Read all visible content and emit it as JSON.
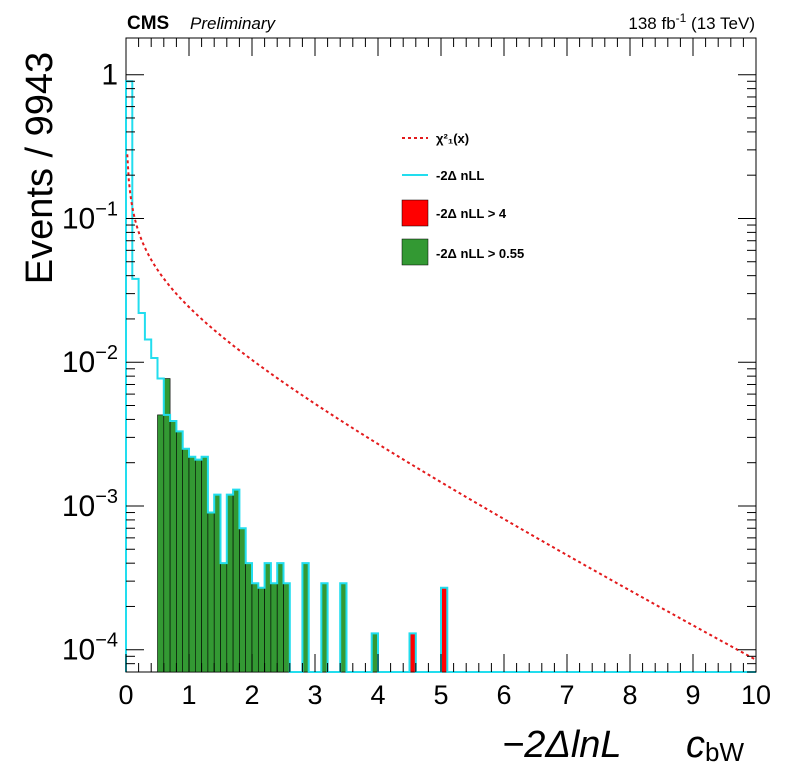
{
  "header": {
    "experiment": "CMS",
    "status": "Preliminary",
    "lumi_value": "138 fb",
    "lumi_exp": "-1",
    "energy": " (13 TeV)"
  },
  "chart_data": {
    "type": "bar",
    "title": "",
    "xlabel_main": "−2ΔlnL",
    "xlabel_param": "c",
    "xlabel_param_sub": "bW",
    "ylabel": "Events / 9943",
    "xlim": [
      0,
      10
    ],
    "ylim": [
      7e-05,
      1.8
    ],
    "yscale": "log",
    "x_ticks": [
      "0",
      "1",
      "2",
      "3",
      "4",
      "5",
      "6",
      "7",
      "8",
      "9",
      "10"
    ],
    "y_ticks": [
      {
        "value": 1,
        "base": "1",
        "exp": ""
      },
      {
        "value": 0.1,
        "base": "10",
        "exp": "−1"
      },
      {
        "value": 0.01,
        "base": "10",
        "exp": "−2"
      },
      {
        "value": 0.001,
        "base": "10",
        "exp": "−3"
      },
      {
        "value": 0.0001,
        "base": "10",
        "exp": "−4"
      }
    ],
    "bin_width": 0.1,
    "legend_position": "top-right",
    "legend": [
      {
        "label": "χ²₁(x)",
        "style": "dashed-line",
        "color": "#e31a1c"
      },
      {
        "label": "-2Δ nLL",
        "style": "line",
        "color": "#22ddee"
      },
      {
        "label": "-2Δ nLL > 4",
        "style": "box",
        "color": "#ff0000"
      },
      {
        "label": "-2Δ nLL > 0.55",
        "style": "box",
        "color": "#339933"
      }
    ],
    "series": [
      {
        "name": "-2Δ nLL",
        "color": "#22ddee",
        "bins_low_edge": [
          0.0,
          0.1,
          0.2,
          0.3,
          0.4,
          0.5,
          0.6,
          0.7,
          0.8,
          0.9,
          1.0,
          1.1,
          1.2,
          1.3,
          1.4,
          1.5,
          1.6,
          1.7,
          1.8,
          1.9,
          2.0,
          2.1,
          2.2,
          2.3,
          2.4,
          2.5,
          2.6,
          2.8,
          3.0,
          3.1,
          3.2,
          3.4,
          3.5,
          3.6,
          3.9,
          4.0,
          4.5,
          4.6,
          5.0,
          5.1
        ],
        "values": [
          0.9,
          0.038,
          0.022,
          0.0144,
          0.0107,
          0.0077,
          0.0043,
          0.0039,
          0.0033,
          0.0025,
          0.0022,
          0.0021,
          0.0022,
          0.0009,
          0.0012,
          0.0004,
          0.0012,
          0.0013,
          0.0007,
          0.0004,
          0.00029,
          0.00027,
          0.0004,
          0.00029,
          0.0004,
          0.00029,
          0.0,
          0.0004,
          0.0,
          0.00029,
          0.0,
          0.00029,
          0.0,
          0.0,
          0.00013,
          0.0,
          0.00013,
          0.0,
          0.00027,
          0.0
        ]
      },
      {
        "name": "-2Δ nLL > 0.55",
        "color": "#339933",
        "bins_low_edge": [
          0.5,
          0.6,
          0.7,
          0.8,
          0.9,
          1.0,
          1.1,
          1.2,
          1.3,
          1.4,
          1.5,
          1.6,
          1.7,
          1.8,
          1.9,
          2.0,
          2.1,
          2.2,
          2.3,
          2.4,
          2.5,
          2.8,
          3.1,
          3.4,
          3.9
        ],
        "values": [
          0.0043,
          0.0077,
          0.0039,
          0.0033,
          0.0025,
          0.0022,
          0.0021,
          0.0022,
          0.0009,
          0.0012,
          0.0004,
          0.0012,
          0.0013,
          0.0007,
          0.0004,
          0.00029,
          0.00027,
          0.0004,
          0.00029,
          0.0004,
          0.00029,
          0.0004,
          0.00029,
          0.00029,
          0.00013
        ]
      },
      {
        "name": "-2Δ nLL > 4",
        "color": "#ff0000",
        "bins_low_edge": [
          4.5,
          5.0
        ],
        "values": [
          0.00013,
          0.00027
        ]
      },
      {
        "name": "χ²₁(x)",
        "color": "#e31a1c",
        "style": "dashed",
        "function": "chi2_1 pdf × 0.1",
        "x_start": 0.02,
        "x_end": 10
      }
    ]
  }
}
